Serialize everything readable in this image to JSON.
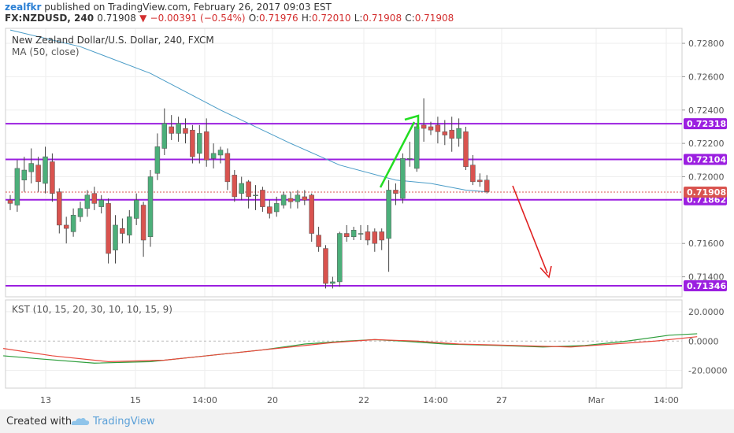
{
  "header": {
    "user": "zealfkr",
    "published": "published on TradingView.com, February 26, 2017 09:03 EST",
    "symbol": "FX:NZDUSD, 240",
    "last": "0.71908",
    "change": "−0.00391 (−0.54%)",
    "ohlc": {
      "o_label": "O:",
      "o": "0.71976",
      "h_label": "H:",
      "h": "0.72010",
      "l_label": "L:",
      "l": "0.71908",
      "c_label": "C:",
      "c": "0.71908"
    }
  },
  "legend": {
    "title": "New Zealand Dollar/U.S. Dollar, 240, FXCM",
    "ma": "MA (50, close)",
    "kst": "KST (10, 15, 20, 30, 10, 10, 15, 9)"
  },
  "footer": {
    "created": "Created with",
    "brand": "TradingView"
  },
  "colors": {
    "up": "#4caf7a",
    "down": "#d9534f",
    "level": "#9b1fe0",
    "ma": "#4a9cc7",
    "kst": "#2e9e3c",
    "kst_signal": "#e8483c",
    "green_arrow": "#22dd22",
    "red_arrow": "#e02020"
  },
  "chart_data": [
    {
      "type": "candlestick",
      "title": "New Zealand Dollar/U.S. Dollar, 240, FXCM",
      "ylim": [
        0.7128,
        0.7289
      ],
      "y_ticks": [
        "0.72800",
        "0.72600",
        "0.72400",
        "0.72200",
        "0.72000",
        "0.71600",
        "0.71400"
      ],
      "x_ticks": [
        "13",
        "15",
        "14:00",
        "20",
        "22",
        "14:00",
        "27",
        "Mar",
        "14:00"
      ],
      "levels": [
        {
          "label": "0.72318",
          "value": 0.72318
        },
        {
          "label": "0.72104",
          "value": 0.72104
        },
        {
          "label": "0.71862",
          "value": 0.71862
        },
        {
          "label": "0.71346",
          "value": 0.71346
        }
      ],
      "last_price": {
        "label": "0.71908",
        "value": 0.71908
      },
      "candles": [
        [
          0.7186,
          0.7184,
          0.7189,
          0.718
        ],
        [
          0.7183,
          0.7205,
          0.721,
          0.7179
        ],
        [
          0.7198,
          0.7204,
          0.7212,
          0.7191
        ],
        [
          0.7203,
          0.7208,
          0.7217,
          0.7196
        ],
        [
          0.7207,
          0.7197,
          0.7212,
          0.7191
        ],
        [
          0.7196,
          0.7212,
          0.7218,
          0.719
        ],
        [
          0.7209,
          0.719,
          0.7214,
          0.7185
        ],
        [
          0.7191,
          0.7171,
          0.7193,
          0.7166
        ],
        [
          0.7171,
          0.7169,
          0.7176,
          0.716
        ],
        [
          0.7167,
          0.7177,
          0.7181,
          0.7164
        ],
        [
          0.7176,
          0.7181,
          0.7185,
          0.7173
        ],
        [
          0.7181,
          0.7189,
          0.7192,
          0.7176
        ],
        [
          0.719,
          0.7184,
          0.7194,
          0.718
        ],
        [
          0.7182,
          0.7186,
          0.7189,
          0.7178
        ],
        [
          0.7184,
          0.7154,
          0.7187,
          0.7148
        ],
        [
          0.7156,
          0.7171,
          0.7177,
          0.7148
        ],
        [
          0.7169,
          0.7166,
          0.7175,
          0.716
        ],
        [
          0.7165,
          0.7176,
          0.718,
          0.716
        ],
        [
          0.7175,
          0.7186,
          0.719,
          0.7171
        ],
        [
          0.7183,
          0.7162,
          0.7185,
          0.7152
        ],
        [
          0.7164,
          0.72,
          0.7204,
          0.7158
        ],
        [
          0.7202,
          0.7218,
          0.7226,
          0.7198
        ],
        [
          0.7217,
          0.7232,
          0.7241,
          0.7213
        ],
        [
          0.723,
          0.7226,
          0.7237,
          0.7222
        ],
        [
          0.7226,
          0.7232,
          0.7236,
          0.7221
        ],
        [
          0.7229,
          0.7226,
          0.7235,
          0.722
        ],
        [
          0.7228,
          0.7212,
          0.7231,
          0.7208
        ],
        [
          0.7214,
          0.7226,
          0.7231,
          0.7208
        ],
        [
          0.7227,
          0.721,
          0.7235,
          0.7206
        ],
        [
          0.7211,
          0.7214,
          0.722,
          0.7205
        ],
        [
          0.7213,
          0.7216,
          0.7218,
          0.7208
        ],
        [
          0.7214,
          0.7197,
          0.7217,
          0.7192
        ],
        [
          0.7201,
          0.7188,
          0.7204,
          0.7185
        ],
        [
          0.719,
          0.7196,
          0.72,
          0.7186
        ],
        [
          0.7197,
          0.7188,
          0.7198,
          0.7181
        ],
        [
          0.7189,
          0.7189,
          0.7195,
          0.718
        ],
        [
          0.7192,
          0.7182,
          0.7194,
          0.7179
        ],
        [
          0.7182,
          0.7178,
          0.7186,
          0.7175
        ],
        [
          0.7179,
          0.7184,
          0.7188,
          0.7176
        ],
        [
          0.7183,
          0.7189,
          0.7191,
          0.7181
        ],
        [
          0.7187,
          0.7185,
          0.7191,
          0.7181
        ],
        [
          0.7185,
          0.7189,
          0.7192,
          0.7181
        ],
        [
          0.7188,
          0.7186,
          0.7192,
          0.7183
        ],
        [
          0.7189,
          0.7166,
          0.719,
          0.7161
        ],
        [
          0.7165,
          0.7158,
          0.717,
          0.7155
        ],
        [
          0.7157,
          0.7136,
          0.7159,
          0.7133
        ],
        [
          0.7136,
          0.7137,
          0.714,
          0.7133
        ],
        [
          0.7137,
          0.7166,
          0.7167,
          0.7134
        ],
        [
          0.7166,
          0.7164,
          0.7171,
          0.7161
        ],
        [
          0.7164,
          0.7168,
          0.717,
          0.7162
        ],
        [
          0.7166,
          0.7166,
          0.7171,
          0.7162
        ],
        [
          0.7167,
          0.7162,
          0.7171,
          0.7159
        ],
        [
          0.7167,
          0.716,
          0.7169,
          0.7155
        ],
        [
          0.7167,
          0.7162,
          0.7169,
          0.7156
        ],
        [
          0.7163,
          0.7192,
          0.7198,
          0.7143
        ],
        [
          0.7192,
          0.719,
          0.7196,
          0.7183
        ],
        [
          0.7187,
          0.7211,
          0.7214,
          0.7184
        ],
        [
          0.7211,
          0.7211,
          0.7221,
          0.7206
        ],
        [
          0.7205,
          0.723,
          0.7232,
          0.7203
        ],
        [
          0.7231,
          0.7229,
          0.7247,
          0.7221
        ],
        [
          0.723,
          0.7228,
          0.7233,
          0.7225
        ],
        [
          0.7231,
          0.7227,
          0.7236,
          0.722
        ],
        [
          0.7227,
          0.7225,
          0.7234,
          0.7219
        ],
        [
          0.7228,
          0.7223,
          0.7236,
          0.7215
        ],
        [
          0.7223,
          0.7229,
          0.7235,
          0.7218
        ],
        [
          0.7227,
          0.7206,
          0.723,
          0.7204
        ],
        [
          0.7207,
          0.7197,
          0.7213,
          0.7195
        ],
        [
          0.7198,
          0.7197,
          0.7202,
          0.7194
        ],
        [
          0.7198,
          0.7191,
          0.7201,
          0.719
        ]
      ],
      "ma": [
        [
          0,
          0.7288
        ],
        [
          10,
          0.7278
        ],
        [
          20,
          0.7262
        ],
        [
          30,
          0.724
        ],
        [
          40,
          0.722
        ],
        [
          47,
          0.7207
        ],
        [
          55,
          0.7198
        ],
        [
          60,
          0.7196
        ],
        [
          65,
          0.7192
        ],
        [
          68,
          0.7191
        ]
      ]
    },
    {
      "type": "line",
      "title": "KST (10, 15, 20, 30, 10, 10, 15, 9)",
      "ylim": [
        -32,
        28
      ],
      "y_ticks": [
        "20.0000",
        "0.0000",
        "-20.0000"
      ],
      "series": [
        {
          "name": "KST",
          "points": [
            [
              -1,
              -10
            ],
            [
              4,
              -12
            ],
            [
              12,
              -15
            ],
            [
              20,
              -14
            ],
            [
              28,
              -10
            ],
            [
              36,
              -6
            ],
            [
              42,
              -2
            ],
            [
              48,
              0
            ],
            [
              52,
              1
            ],
            [
              56,
              0
            ],
            [
              62,
              -2
            ],
            [
              70,
              -3
            ],
            [
              76,
              -4
            ],
            [
              82,
              -3
            ],
            [
              88,
              0
            ],
            [
              94,
              4
            ],
            [
              98,
              5
            ]
          ]
        },
        {
          "name": "Signal",
          "points": [
            [
              -1,
              -5
            ],
            [
              6,
              -10
            ],
            [
              14,
              -14
            ],
            [
              22,
              -13
            ],
            [
              30,
              -9
            ],
            [
              38,
              -5
            ],
            [
              46,
              -1
            ],
            [
              52,
              1
            ],
            [
              58,
              0
            ],
            [
              64,
              -2
            ],
            [
              72,
              -3
            ],
            [
              80,
              -4
            ],
            [
              86,
              -2
            ],
            [
              92,
              0
            ],
            [
              98,
              3
            ]
          ]
        }
      ]
    }
  ]
}
